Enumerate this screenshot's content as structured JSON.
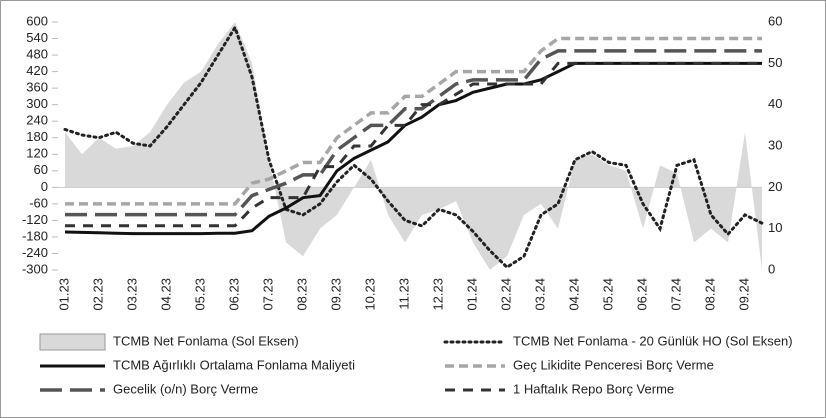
{
  "chart_data": {
    "type": "line",
    "categories": [
      "01.23",
      null,
      "02.23",
      null,
      "03.23",
      null,
      "04.23",
      null,
      "05.23",
      null,
      "06.23",
      null,
      "07.23",
      null,
      "08.23",
      null,
      "09.23",
      null,
      "10.23",
      null,
      "11.23",
      null,
      "12.23",
      null,
      "01.24",
      null,
      "02.24",
      null,
      "03.24",
      null,
      "04.24",
      null,
      "05.24",
      null,
      "06.24",
      null,
      "07.24",
      null,
      "08.24",
      null,
      "09.24",
      null
    ],
    "ylim": [
      -300,
      600
    ],
    "yticks": [
      600,
      540,
      480,
      420,
      360,
      300,
      240,
      180,
      120,
      60,
      0,
      -60,
      -120,
      -180,
      -240,
      -300
    ],
    "y2lim": [
      0,
      60
    ],
    "y2ticks": [
      60,
      50,
      40,
      30,
      20,
      10,
      0
    ],
    "series": [
      {
        "name": "TCMB Net Fonlama (Sol Eksen)",
        "style": "area",
        "color": "#d9d9d9",
        "values": [
          200,
          120,
          180,
          140,
          150,
          200,
          300,
          380,
          420,
          520,
          600,
          450,
          100,
          -200,
          -250,
          -150,
          -100,
          0,
          100,
          -100,
          -200,
          -100,
          -80,
          -50,
          -200,
          -300,
          -250,
          -100,
          -60,
          -150,
          100,
          120,
          80,
          60,
          -150,
          80,
          50,
          -200,
          -150,
          -200,
          200,
          -300
        ]
      },
      {
        "name": "TCMB Net Fonlama - 20 Günlük HO (Sol Eksen)",
        "style": "dotted",
        "color": "#222222",
        "values": [
          210,
          190,
          180,
          200,
          160,
          150,
          220,
          300,
          380,
          480,
          580,
          400,
          100,
          -80,
          -100,
          -60,
          20,
          80,
          30,
          -50,
          -120,
          -140,
          -80,
          -100,
          -160,
          -230,
          -290,
          -250,
          -100,
          -60,
          100,
          130,
          90,
          80,
          -60,
          -150,
          80,
          100,
          -100,
          -170,
          -100,
          -130
        ]
      },
      {
        "name": "TCMB Ağırlıklı Ortalama Fonlama Maliyeti",
        "style": "solid",
        "color": "#111111",
        "values": [
          9.2,
          9.1,
          9.0,
          8.9,
          8.8,
          8.8,
          8.8,
          8.8,
          8.8,
          8.9,
          8.9,
          9.5,
          13,
          15,
          17.5,
          18,
          24,
          27,
          29,
          31,
          35,
          37,
          40,
          41,
          43,
          44,
          45,
          45,
          46,
          48,
          50,
          50,
          50,
          50,
          50,
          50,
          50,
          50,
          50,
          50,
          50,
          50
        ]
      },
      {
        "name": "Geç Likidite Penceresi Borç Verme",
        "style": "dashed",
        "color": "#a6a6a6",
        "values": [
          16,
          16,
          16,
          16,
          16,
          16,
          16,
          16,
          16,
          16,
          16,
          21,
          22,
          24,
          26,
          26,
          32,
          35,
          38,
          38,
          42,
          42,
          45,
          48,
          48,
          48,
          48,
          48,
          53,
          56,
          56,
          56,
          56,
          56,
          56,
          56,
          56,
          56,
          56,
          56,
          56,
          56
        ]
      },
      {
        "name": "Gecelik (o/n) Borç Verme",
        "style": "longdash",
        "color": "#555555",
        "values": [
          13.4,
          13.4,
          13.4,
          13.4,
          13.4,
          13.4,
          13.4,
          13.4,
          13.4,
          13.4,
          13.4,
          18,
          19.5,
          21,
          23,
          23,
          29,
          32,
          35,
          35,
          39,
          39,
          42,
          45,
          46,
          46,
          46,
          46,
          51,
          53,
          53,
          53,
          53,
          53,
          53,
          53,
          53,
          53,
          53,
          53,
          53,
          53
        ]
      },
      {
        "name": "1 Haftalık Repo Borç Verme",
        "style": "shortdash",
        "color": "#333333",
        "values": [
          10.7,
          10.7,
          10.7,
          10.7,
          10.7,
          10.7,
          10.7,
          10.7,
          10.7,
          10.7,
          10.7,
          15,
          17.5,
          17.5,
          17.5,
          25,
          25,
          30,
          30,
          35,
          35,
          40,
          40,
          42.5,
          45,
          45,
          45,
          45,
          45,
          50,
          50,
          50,
          50,
          50,
          50,
          50,
          50,
          50,
          50,
          50,
          50,
          50
        ],
        "axis": "y2"
      }
    ]
  }
}
